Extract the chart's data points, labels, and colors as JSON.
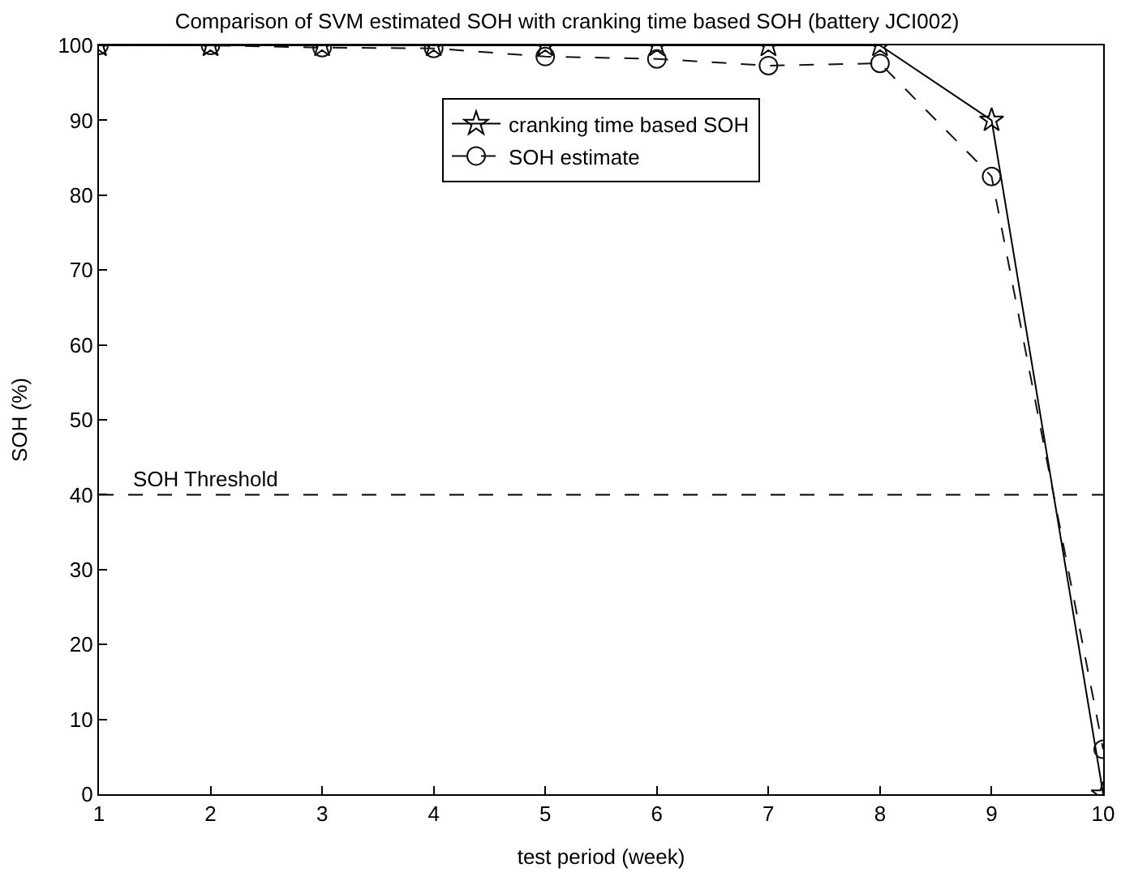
{
  "chart_data": {
    "type": "line",
    "title": "Comparison of SVM estimated SOH with cranking time based SOH (battery JCI002)",
    "xlabel": "test period (week)",
    "ylabel": "SOH (%)",
    "x": [
      1,
      2,
      3,
      4,
      5,
      6,
      7,
      8,
      9,
      10
    ],
    "series": [
      {
        "name": "cranking time based SOH",
        "color": "#000000",
        "marker": "star",
        "line_style": "solid",
        "values": [
          100,
          100,
          100,
          100,
          100,
          100,
          100,
          100,
          90,
          0
        ]
      },
      {
        "name": "SOH estimate",
        "color": "#111111",
        "marker": "circle",
        "line_style": "dashed",
        "values": [
          100,
          100,
          99.7,
          99.6,
          98.5,
          98.2,
          97.3,
          97.6,
          82.5,
          6
        ]
      }
    ],
    "xlim": [
      1,
      10
    ],
    "xticks": [
      1,
      2,
      3,
      4,
      5,
      6,
      7,
      8,
      9,
      10
    ],
    "ylim": [
      0,
      100
    ],
    "yticks": [
      0,
      10,
      20,
      30,
      40,
      50,
      60,
      70,
      80,
      90,
      100
    ],
    "ref_lines": [
      {
        "axis": "y",
        "value": 40,
        "label": "SOH Threshold",
        "color": "#000000",
        "line_style": "dashed"
      }
    ],
    "legend": "top"
  }
}
